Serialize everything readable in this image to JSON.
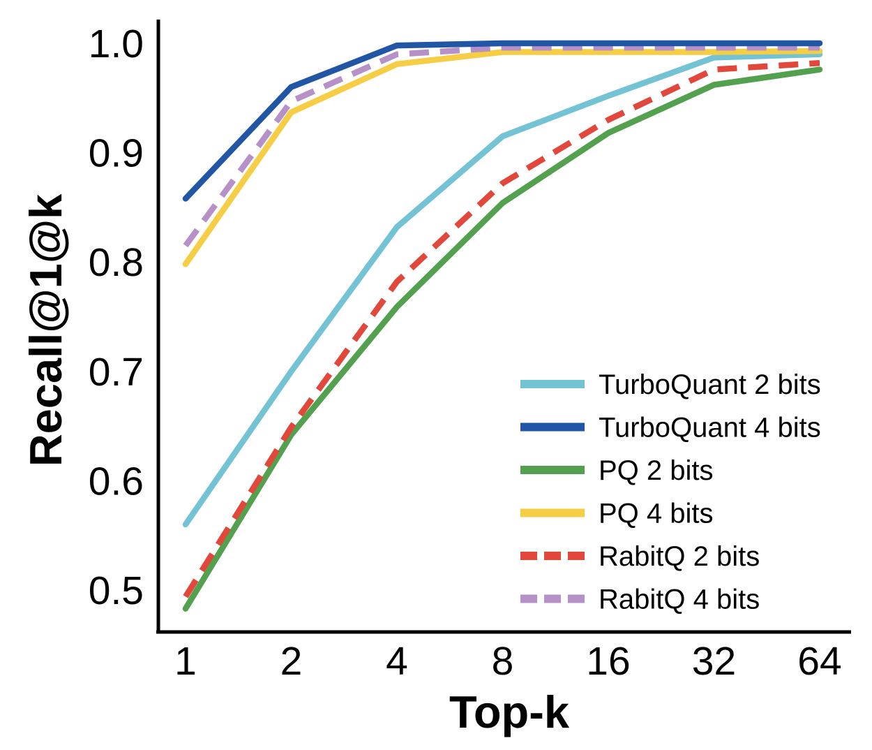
{
  "chart_data": {
    "type": "line",
    "title": "",
    "xlabel": "Top-k",
    "ylabel": "Recall@1@k",
    "x_scale": "log2",
    "categories": [
      1,
      2,
      4,
      8,
      16,
      32,
      64
    ],
    "x_tick_labels": [
      "1",
      "2",
      "4",
      "8",
      "16",
      "32",
      "64"
    ],
    "y_tick_labels": [
      "1.0",
      "0.9",
      "0.8",
      "0.7",
      "0.6",
      "0.5"
    ],
    "y_tick_values": [
      1.0,
      0.9,
      0.8,
      0.7,
      0.6,
      0.5
    ],
    "ylim": [
      0.46,
      1.02
    ],
    "grid": false,
    "legend_position": "lower-right",
    "axis_color": "#000000",
    "background_color": "#ffffff",
    "series": [
      {
        "name": "TurboQuant 2 bits",
        "color": "#73c3d5",
        "style": "solid",
        "values": [
          0.56,
          0.7,
          0.832,
          0.915,
          0.952,
          0.987,
          0.99
        ]
      },
      {
        "name": "TurboQuant 4 bits",
        "color": "#2156a5",
        "style": "solid",
        "values": [
          0.858,
          0.96,
          0.998,
          1.0,
          1.0,
          1.0,
          1.0
        ]
      },
      {
        "name": "PQ 2 bits",
        "color": "#53a04e",
        "style": "solid",
        "values": [
          0.483,
          0.642,
          0.759,
          0.854,
          0.918,
          0.962,
          0.976
        ]
      },
      {
        "name": "PQ 4 bits",
        "color": "#f6ce46",
        "style": "solid",
        "values": [
          0.798,
          0.937,
          0.981,
          0.992,
          0.992,
          0.992,
          0.993
        ]
      },
      {
        "name": "RabitQ 2 bits",
        "color": "#e1483b",
        "style": "dashed",
        "values": [
          0.494,
          0.649,
          0.782,
          0.872,
          0.93,
          0.976,
          0.982
        ]
      },
      {
        "name": "RabitQ 4 bits",
        "color": "#b591c8",
        "style": "dashed",
        "values": [
          0.815,
          0.947,
          0.99,
          0.996,
          0.996,
          0.996,
          0.996
        ]
      }
    ]
  }
}
